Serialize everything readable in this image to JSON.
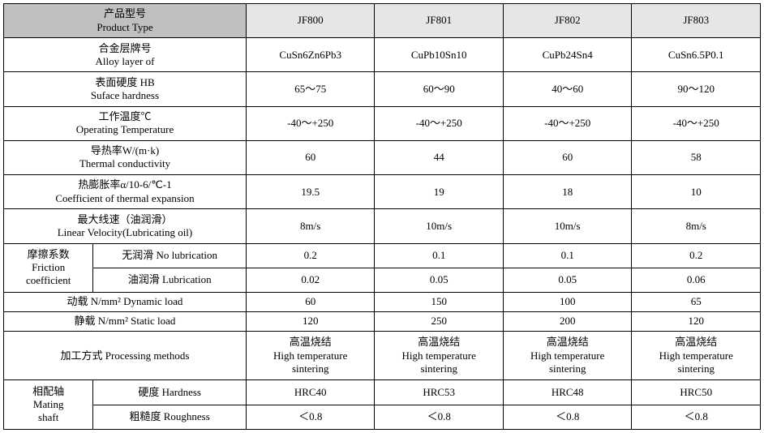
{
  "colors": {
    "header_param_bg": "#c0c0c0",
    "header_prod_bg": "#e6e6e6",
    "border": "#000000",
    "text": "#000000",
    "page_bg": "#ffffff"
  },
  "typography": {
    "family": "SimSun / 宋体",
    "size_pt": 10,
    "weight": "normal"
  },
  "header": {
    "param_label_cn": "产品型号",
    "param_label_en": "Product Type",
    "products": [
      "JF800",
      "JF801",
      "JF802",
      "JF803"
    ]
  },
  "rows": {
    "alloy": {
      "label_cn": "合金层牌号",
      "label_en": "Alloy layer of",
      "vals": [
        "CuSn6Zn6Pb3",
        "CuPb10Sn10",
        "CuPb24Sn4",
        "CuSn6.5P0.1"
      ]
    },
    "hardness_hb": {
      "label_cn": "表面硬度 HB",
      "label_en": "Suface hardness",
      "vals": [
        "65～75",
        "60～90",
        "40～60",
        "90～120"
      ]
    },
    "op_temp": {
      "label_cn": "工作温度℃",
      "label_en": "Operating Temperature",
      "vals": [
        "-40～+250",
        "-40～+250",
        "-40～+250",
        "-40～+250"
      ]
    },
    "thermal_cond": {
      "label_cn": "导热率W/(m·k)",
      "label_en": "Thermal conductivity",
      "vals": [
        "60",
        "44",
        "60",
        "58"
      ]
    },
    "thermal_exp": {
      "label_cn": "热膨胀率α/10-6/℃-1",
      "label_en": "Coefficient of thermal expansion",
      "vals": [
        "19.5",
        "19",
        "18",
        "10"
      ]
    },
    "linear_vel": {
      "label_cn": "最大线速（油润滑）",
      "label_en": "Linear Velocity(Lubricating oil)",
      "vals": [
        "8m/s",
        "10m/s",
        "10m/s",
        "8m/s"
      ]
    },
    "friction": {
      "group_cn": "摩擦系数",
      "group_en": "Friction",
      "group_en2": "coefficient",
      "no_lub_label": "无润滑 No lubrication",
      "no_lub_vals": [
        "0.2",
        "0.1",
        "0.1",
        "0.2"
      ],
      "lub_label": "油润滑 Lubrication",
      "lub_vals": [
        "0.02",
        "0.05",
        "0.05",
        "0.06"
      ]
    },
    "dynamic_load": {
      "label": "动载 N/mm²   Dynamic load",
      "vals": [
        "60",
        "150",
        "100",
        "65"
      ]
    },
    "static_load": {
      "label": "静载 N/mm²   Static load",
      "vals": [
        "120",
        "250",
        "200",
        "120"
      ]
    },
    "processing": {
      "label": "加工方式   Processing methods",
      "val_cn": "高温烧结",
      "val_en1": "High temperature",
      "val_en2": "sintering"
    },
    "mating_shaft": {
      "group_cn": "相配轴",
      "group_en1": "Mating",
      "group_en2": "shaft",
      "hardness_label": "硬度   Hardness",
      "hardness_vals": [
        "HRC40",
        "HRC53",
        "HRC48",
        "HRC50"
      ],
      "roughness_label": "粗糙度   Roughness",
      "roughness_vals": [
        "＜0.8",
        "＜0.8",
        "＜0.8",
        "＜0.8"
      ]
    }
  }
}
